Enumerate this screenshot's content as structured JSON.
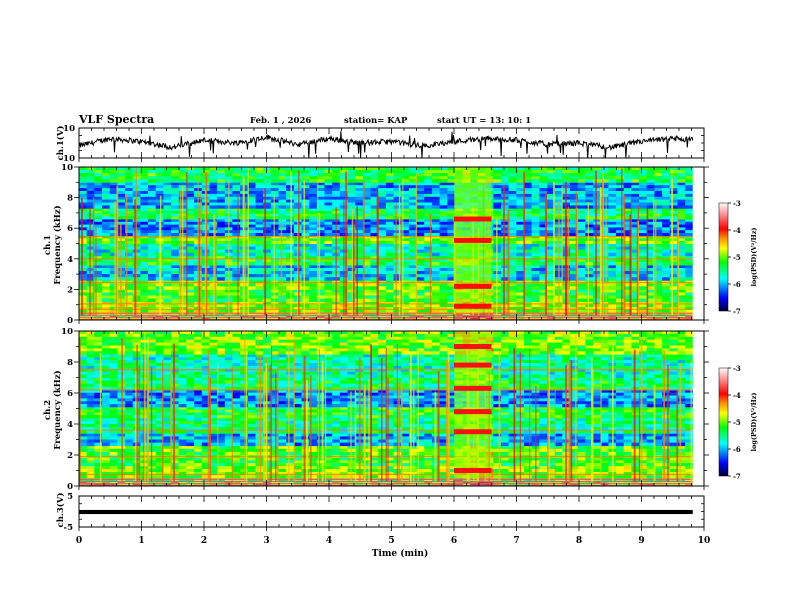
{
  "header": {
    "title": "VLF Spectra",
    "date": "Feb. 1 , 2026",
    "station": "station= KAP",
    "start": "start  UT =   13: 10: 1"
  },
  "chart_data": [
    {
      "type": "line",
      "name": "ch1-waveform",
      "ylabel": "ch.1(V)",
      "ylim": [
        -10,
        10
      ],
      "yticks": [
        "10",
        "-10"
      ],
      "xlim": [
        0,
        10
      ],
      "x_end": 9.82,
      "trend_x": [
        0,
        0.5,
        1.0,
        1.5,
        2.0,
        2.5,
        3.0,
        3.5,
        4.0,
        4.5,
        5.0,
        5.5,
        6.0,
        6.5,
        7.0,
        7.5,
        8.0,
        8.5,
        9.0,
        9.5,
        9.82
      ],
      "trend_y": [
        -2,
        3,
        1,
        -3,
        2,
        0,
        4,
        -1,
        3,
        0,
        1,
        -2,
        1,
        3,
        2,
        -1,
        0,
        -3,
        1,
        3,
        2
      ],
      "noise_amp": 1.8
    },
    {
      "type": "heatmap",
      "name": "ch1-spectrogram",
      "ylabel": "ch.1\nFrequency (kHz)",
      "ylim": [
        0,
        10
      ],
      "yticks": [
        "0",
        "2",
        "4",
        "6",
        "8",
        "10"
      ],
      "xlim": [
        0,
        10
      ],
      "x_end": 9.82,
      "colorbar": {
        "label": "log(PSD)(V²/Hz)",
        "range": [
          -7,
          -3
        ],
        "ticks": [
          "-3",
          "-4",
          "-5",
          "-6",
          "-7"
        ]
      },
      "colormap": [
        "#000033",
        "#0000ff",
        "#00ffff",
        "#00ff00",
        "#ffff00",
        "#ff0000",
        "#ffffff"
      ],
      "base_bands": [
        {
          "f": [
            0,
            0.3
          ],
          "v": -4.6
        },
        {
          "f": [
            0.3,
            1.2
          ],
          "v": -4.9
        },
        {
          "f": [
            1.2,
            2.0
          ],
          "v": -5.2
        },
        {
          "f": [
            2.0,
            2.6
          ],
          "v": -5.0
        },
        {
          "f": [
            2.6,
            3.6
          ],
          "v": -5.9
        },
        {
          "f": [
            3.6,
            4.2
          ],
          "v": -5.3
        },
        {
          "f": [
            4.2,
            5.0
          ],
          "v": -5.7
        },
        {
          "f": [
            5.0,
            5.5
          ],
          "v": -5.1
        },
        {
          "f": [
            5.5,
            6.6
          ],
          "v": -6.1
        },
        {
          "f": [
            6.6,
            7.3
          ],
          "v": -5.4
        },
        {
          "f": [
            7.3,
            9.0
          ],
          "v": -6.0
        },
        {
          "f": [
            9.0,
            10.0
          ],
          "v": -5.3
        }
      ],
      "event": {
        "t": [
          6.0,
          6.6
        ],
        "lines_khz": [
          0.9,
          2.2,
          5.2,
          6.6
        ],
        "v": -4.0
      },
      "harmonic_lines_khz": [
        0.45,
        0.7,
        1.05,
        2.45,
        4.0,
        5.45
      ],
      "spherics_count": 95
    },
    {
      "type": "heatmap",
      "name": "ch2-spectrogram",
      "ylabel": "ch.2\nFrequency (kHz)",
      "ylim": [
        0,
        10
      ],
      "yticks": [
        "0",
        "2",
        "4",
        "6",
        "8",
        "10"
      ],
      "xlim": [
        0,
        10
      ],
      "x_end": 9.82,
      "colorbar": {
        "label": "log(PSD)(V²/Hz)",
        "range": [
          -7,
          -3
        ],
        "ticks": [
          "-3",
          "-4",
          "-5",
          "-6",
          "-7"
        ]
      },
      "colormap": [
        "#000033",
        "#0000ff",
        "#00ffff",
        "#00ff00",
        "#ffff00",
        "#ff0000",
        "#ffffff"
      ],
      "base_bands": [
        {
          "f": [
            0,
            0.3
          ],
          "v": -4.6
        },
        {
          "f": [
            0.3,
            1.3
          ],
          "v": -5.0
        },
        {
          "f": [
            1.3,
            2.0
          ],
          "v": -5.2
        },
        {
          "f": [
            2.0,
            2.6
          ],
          "v": -5.1
        },
        {
          "f": [
            2.6,
            3.4
          ],
          "v": -6.0
        },
        {
          "f": [
            3.4,
            4.4
          ],
          "v": -5.5
        },
        {
          "f": [
            4.4,
            5.1
          ],
          "v": -5.3
        },
        {
          "f": [
            5.1,
            6.2
          ],
          "v": -6.1
        },
        {
          "f": [
            6.2,
            7.0
          ],
          "v": -5.4
        },
        {
          "f": [
            7.0,
            8.5
          ],
          "v": -5.6
        },
        {
          "f": [
            8.5,
            10.0
          ],
          "v": -5.0
        }
      ],
      "event": {
        "t": [
          6.0,
          6.6
        ],
        "lines_khz": [
          1.0,
          3.5,
          4.8,
          6.3,
          7.8,
          9.0
        ],
        "v": -3.9
      },
      "harmonic_lines_khz": [
        0.45,
        0.75,
        1.9,
        3.6,
        6.2,
        7.5
      ],
      "spherics_count": 95
    },
    {
      "type": "line",
      "name": "ch3-waveform",
      "ylabel": "ch.3(V)",
      "ylim": [
        -5,
        5
      ],
      "yticks": [
        "5",
        "-5"
      ],
      "xlim": [
        0,
        10
      ],
      "x_end": 9.82,
      "level": 0,
      "band_halfwidth": 0.5,
      "xlabel": "Time  (min)",
      "xticks": [
        "0",
        "1",
        "2",
        "3",
        "4",
        "5",
        "6",
        "7",
        "8",
        "9",
        "10"
      ]
    }
  ]
}
